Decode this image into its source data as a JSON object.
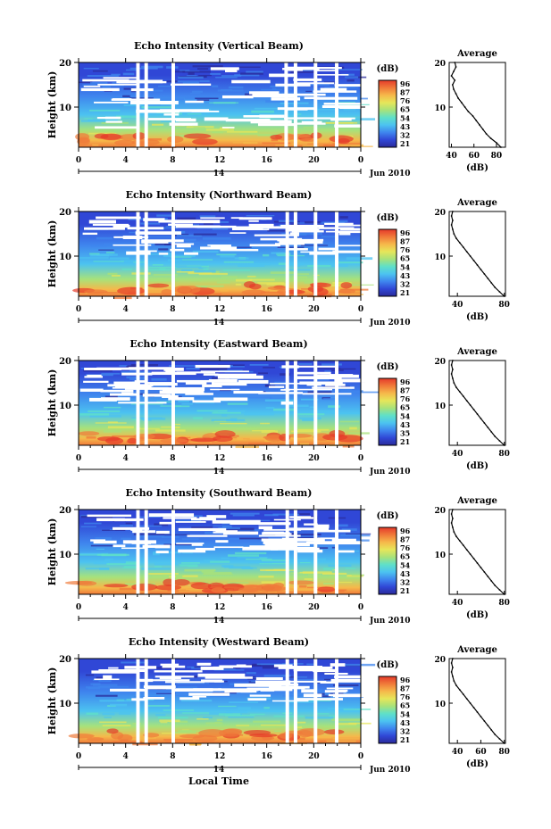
{
  "figure": {
    "x_axis_title": "Local Time",
    "date_label": "Jun 2010",
    "day_label": "14",
    "y_axis_title": "Height (km)",
    "colorbar_unit": "(dB)",
    "average_title": "Average",
    "average_unit": "(dB)"
  },
  "colors": {
    "scale": [
      "#2a2a9a",
      "#3047d6",
      "#3f86ee",
      "#4cc3f0",
      "#5fe0c8",
      "#a8e27a",
      "#e6e65a",
      "#f6b84a",
      "#f07a3a",
      "#e53a2a"
    ],
    "gap": "#ffffff"
  },
  "chart_data": [
    {
      "type": "heatmap",
      "title": "Echo Intensity (Vertical Beam)",
      "x_ticks": [
        "0",
        "4",
        "8",
        "12",
        "16",
        "20",
        "0"
      ],
      "xlim": [
        0,
        24
      ],
      "y_ticks": [
        "10",
        "20"
      ],
      "ylim": [
        1,
        20
      ],
      "colorbar_ticks": [
        "96",
        "87",
        "76",
        "65",
        "54",
        "43",
        "32",
        "21"
      ],
      "colorbar_range": [
        21,
        96
      ],
      "data_gaps_hours": [
        [
          4.9,
          5.2
        ],
        [
          5.6,
          5.9
        ],
        [
          7.9,
          8.2
        ],
        [
          17.5,
          17.8
        ],
        [
          18.3,
          18.6
        ],
        [
          20.0,
          20.3
        ],
        [
          21.8,
          22.1
        ]
      ],
      "average_profile": {
        "x_ticks": [
          "40",
          "60",
          "80"
        ],
        "xlim": [
          38,
          88
        ],
        "y_ticks": [
          "10",
          "20"
        ],
        "height_km": [
          1,
          2,
          3,
          4,
          5,
          6,
          7,
          8,
          9,
          10,
          11,
          12,
          13,
          14,
          15,
          16,
          17,
          18,
          19,
          20
        ],
        "intensity_db": [
          84,
          80,
          75,
          71,
          68,
          65,
          62,
          59,
          55,
          52,
          49,
          46,
          44,
          42,
          41,
          43,
          40,
          42,
          44,
          43
        ]
      }
    },
    {
      "type": "heatmap",
      "title": "Echo Intensity (Northward Beam)",
      "x_ticks": [
        "0",
        "4",
        "8",
        "12",
        "16",
        "20",
        "0"
      ],
      "xlim": [
        0,
        24
      ],
      "y_ticks": [
        "10",
        "20"
      ],
      "ylim": [
        1,
        20
      ],
      "colorbar_ticks": [
        "96",
        "87",
        "76",
        "65",
        "54",
        "43",
        "32",
        "21"
      ],
      "colorbar_range": [
        21,
        96
      ],
      "data_gaps_hours": [
        [
          4.9,
          5.2
        ],
        [
          5.6,
          5.9
        ],
        [
          7.9,
          8.2
        ],
        [
          17.6,
          17.9
        ],
        [
          18.3,
          18.6
        ],
        [
          20.0,
          20.3
        ],
        [
          21.8,
          22.1
        ]
      ],
      "average_profile": {
        "x_ticks": [
          "40",
          "80"
        ],
        "xlim": [
          33,
          81
        ],
        "y_ticks": [
          "10",
          "20"
        ],
        "height_km": [
          1,
          2,
          3,
          4,
          5,
          6,
          7,
          8,
          9,
          10,
          11,
          12,
          13,
          14,
          15,
          16,
          17,
          18,
          19,
          20
        ],
        "intensity_db": [
          80,
          76,
          72,
          69,
          66,
          63,
          60,
          57,
          54,
          51,
          48,
          45,
          42,
          39,
          37,
          36,
          35,
          36,
          35,
          36
        ]
      }
    },
    {
      "type": "heatmap",
      "title": "Echo Intensity (Eastward Beam)",
      "x_ticks": [
        "0",
        "4",
        "8",
        "12",
        "16",
        "20",
        "0"
      ],
      "xlim": [
        0,
        24
      ],
      "y_ticks": [
        "10",
        "20"
      ],
      "ylim": [
        1,
        20
      ],
      "colorbar_ticks": [
        "96",
        "87",
        "76",
        "65",
        "54",
        "43",
        "35",
        "21"
      ],
      "colorbar_range": [
        21,
        96
      ],
      "data_gaps_hours": [
        [
          4.9,
          5.2
        ],
        [
          5.6,
          5.9
        ],
        [
          7.9,
          8.2
        ],
        [
          17.6,
          17.9
        ],
        [
          18.3,
          18.6
        ],
        [
          20.0,
          20.3
        ],
        [
          21.8,
          22.1
        ]
      ],
      "average_profile": {
        "x_ticks": [
          "40",
          "80"
        ],
        "xlim": [
          33,
          81
        ],
        "y_ticks": [
          "10",
          "20"
        ],
        "height_km": [
          1,
          2,
          3,
          4,
          5,
          6,
          7,
          8,
          9,
          10,
          11,
          12,
          13,
          14,
          15,
          16,
          17,
          18,
          19,
          20
        ],
        "intensity_db": [
          80,
          76,
          72,
          69,
          66,
          63,
          60,
          57,
          54,
          51,
          48,
          45,
          42,
          39,
          37,
          36,
          35,
          36,
          35,
          36
        ]
      }
    },
    {
      "type": "heatmap",
      "title": "Echo Intensity (Southward Beam)",
      "x_ticks": [
        "0",
        "4",
        "8",
        "12",
        "16",
        "20",
        "0"
      ],
      "xlim": [
        0,
        24
      ],
      "y_ticks": [
        "10",
        "20"
      ],
      "ylim": [
        1,
        20
      ],
      "colorbar_ticks": [
        "96",
        "87",
        "76",
        "65",
        "54",
        "43",
        "32",
        "21"
      ],
      "colorbar_range": [
        21,
        96
      ],
      "data_gaps_hours": [
        [
          4.9,
          5.2
        ],
        [
          5.6,
          5.9
        ],
        [
          7.9,
          8.2
        ],
        [
          17.6,
          17.9
        ],
        [
          18.3,
          18.6
        ],
        [
          20.0,
          20.3
        ],
        [
          21.8,
          22.1
        ]
      ],
      "average_profile": {
        "x_ticks": [
          "40",
          "80"
        ],
        "xlim": [
          33,
          81
        ],
        "y_ticks": [
          "10",
          "20"
        ],
        "height_km": [
          1,
          2,
          3,
          4,
          5,
          6,
          7,
          8,
          9,
          10,
          11,
          12,
          13,
          14,
          15,
          16,
          17,
          18,
          19,
          20
        ],
        "intensity_db": [
          80,
          76,
          72,
          69,
          66,
          63,
          60,
          57,
          54,
          51,
          48,
          45,
          42,
          39,
          37,
          36,
          35,
          36,
          35,
          36
        ]
      }
    },
    {
      "type": "heatmap",
      "title": "Echo Intensity (Westward Beam)",
      "x_ticks": [
        "0",
        "4",
        "8",
        "12",
        "16",
        "20",
        "0"
      ],
      "xlim": [
        0,
        24
      ],
      "y_ticks": [
        "10",
        "20"
      ],
      "ylim": [
        1,
        20
      ],
      "colorbar_ticks": [
        "96",
        "87",
        "76",
        "65",
        "54",
        "43",
        "32",
        "21"
      ],
      "colorbar_range": [
        21,
        96
      ],
      "data_gaps_hours": [
        [
          4.9,
          5.2
        ],
        [
          5.6,
          5.9
        ],
        [
          7.9,
          8.2
        ],
        [
          17.6,
          17.9
        ],
        [
          18.3,
          18.6
        ],
        [
          20.0,
          20.3
        ],
        [
          21.8,
          22.1
        ]
      ],
      "average_profile": {
        "x_ticks": [
          "40",
          "60",
          "80"
        ],
        "xlim": [
          33,
          81
        ],
        "y_ticks": [
          "10",
          "20"
        ],
        "height_km": [
          1,
          2,
          3,
          4,
          5,
          6,
          7,
          8,
          9,
          10,
          11,
          12,
          13,
          14,
          15,
          16,
          17,
          18,
          19,
          20
        ],
        "intensity_db": [
          80,
          76,
          72,
          69,
          66,
          63,
          60,
          57,
          54,
          51,
          48,
          45,
          42,
          39,
          37,
          36,
          35,
          36,
          35,
          36
        ]
      }
    }
  ]
}
